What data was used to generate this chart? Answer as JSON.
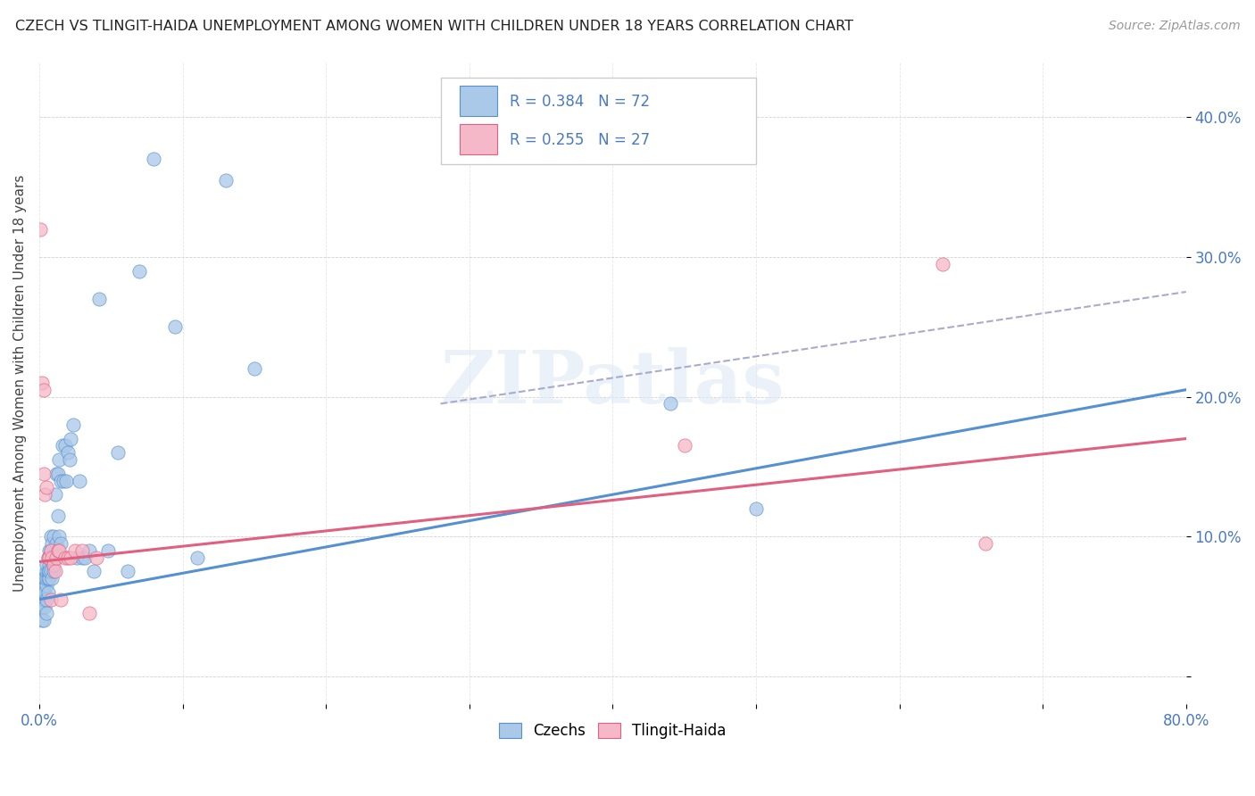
{
  "title": "CZECH VS TLINGIT-HAIDA UNEMPLOYMENT AMONG WOMEN WITH CHILDREN UNDER 18 YEARS CORRELATION CHART",
  "source": "Source: ZipAtlas.com",
  "ylabel": "Unemployment Among Women with Children Under 18 years",
  "xlim": [
    0,
    0.8
  ],
  "ylim": [
    -0.02,
    0.44
  ],
  "xticks": [
    0.0,
    0.1,
    0.2,
    0.3,
    0.4,
    0.5,
    0.6,
    0.7,
    0.8
  ],
  "xticklabels": [
    "0.0%",
    "",
    "",
    "",
    "",
    "",
    "",
    "",
    "80.0%"
  ],
  "yticks": [
    0.0,
    0.1,
    0.2,
    0.3,
    0.4
  ],
  "yticklabels": [
    "",
    "10.0%",
    "20.0%",
    "30.0%",
    "40.0%"
  ],
  "czech_color": "#aac8e8",
  "tlingit_color": "#f5b8c8",
  "czech_line_color": "#5590d0",
  "tlingit_line_color": "#e06080",
  "dashed_line_color": "#aaaacc",
  "watermark": "ZIPatlas",
  "czech_x": [
    0.001,
    0.001,
    0.002,
    0.002,
    0.002,
    0.003,
    0.003,
    0.003,
    0.003,
    0.003,
    0.004,
    0.004,
    0.004,
    0.004,
    0.005,
    0.005,
    0.005,
    0.005,
    0.005,
    0.005,
    0.006,
    0.006,
    0.006,
    0.006,
    0.007,
    0.007,
    0.007,
    0.007,
    0.008,
    0.008,
    0.008,
    0.009,
    0.009,
    0.01,
    0.01,
    0.01,
    0.011,
    0.011,
    0.012,
    0.012,
    0.013,
    0.013,
    0.014,
    0.014,
    0.015,
    0.015,
    0.016,
    0.017,
    0.018,
    0.019,
    0.02,
    0.021,
    0.022,
    0.024,
    0.026,
    0.028,
    0.03,
    0.032,
    0.035,
    0.038,
    0.042,
    0.048,
    0.055,
    0.062,
    0.07,
    0.08,
    0.095,
    0.11,
    0.13,
    0.15,
    0.44,
    0.5
  ],
  "czech_y": [
    0.05,
    0.055,
    0.05,
    0.06,
    0.04,
    0.055,
    0.06,
    0.04,
    0.065,
    0.07,
    0.055,
    0.07,
    0.05,
    0.06,
    0.065,
    0.07,
    0.055,
    0.075,
    0.08,
    0.045,
    0.07,
    0.085,
    0.06,
    0.075,
    0.08,
    0.09,
    0.07,
    0.075,
    0.09,
    0.1,
    0.075,
    0.095,
    0.07,
    0.085,
    0.1,
    0.075,
    0.085,
    0.13,
    0.095,
    0.145,
    0.115,
    0.145,
    0.1,
    0.155,
    0.14,
    0.095,
    0.165,
    0.14,
    0.165,
    0.14,
    0.16,
    0.155,
    0.17,
    0.18,
    0.085,
    0.14,
    0.085,
    0.085,
    0.09,
    0.075,
    0.27,
    0.09,
    0.16,
    0.075,
    0.29,
    0.37,
    0.25,
    0.085,
    0.355,
    0.22,
    0.195,
    0.12
  ],
  "tlingit_x": [
    0.001,
    0.002,
    0.003,
    0.003,
    0.004,
    0.005,
    0.006,
    0.007,
    0.008,
    0.008,
    0.009,
    0.01,
    0.011,
    0.012,
    0.013,
    0.014,
    0.015,
    0.018,
    0.02,
    0.022,
    0.025,
    0.03,
    0.035,
    0.04,
    0.45,
    0.63,
    0.66
  ],
  "tlingit_y": [
    0.32,
    0.21,
    0.205,
    0.145,
    0.13,
    0.135,
    0.085,
    0.085,
    0.09,
    0.055,
    0.085,
    0.08,
    0.075,
    0.085,
    0.09,
    0.09,
    0.055,
    0.085,
    0.085,
    0.085,
    0.09,
    0.09,
    0.045,
    0.085,
    0.165,
    0.295,
    0.095
  ],
  "czech_trend_x": [
    0.0,
    0.8
  ],
  "czech_trend_y": [
    0.055,
    0.205
  ],
  "tlingit_trend_x": [
    0.0,
    0.8
  ],
  "tlingit_trend_y": [
    0.082,
    0.17
  ],
  "dashed_trend_x": [
    0.28,
    0.8
  ],
  "dashed_trend_y": [
    0.195,
    0.275
  ]
}
